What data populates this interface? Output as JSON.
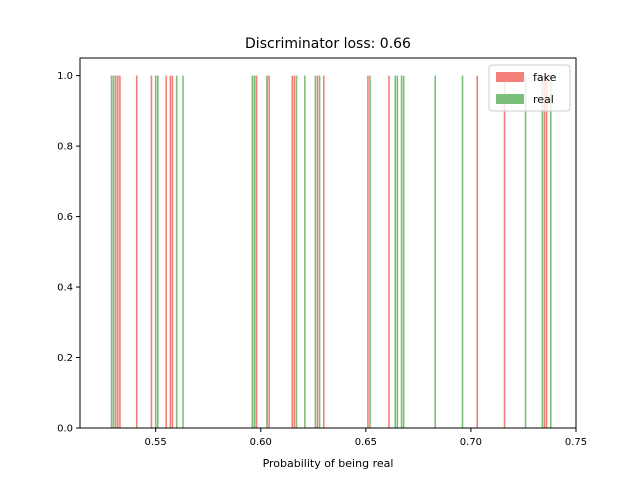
{
  "chart_data": {
    "type": "bar",
    "title": "Discriminator loss: 0.66",
    "xlabel": "Probability of being real",
    "ylabel": "",
    "xlim": [
      0.514,
      0.75
    ],
    "ylim": [
      0,
      1.05
    ],
    "xticks": [
      "0.55",
      "0.60",
      "0.65",
      "0.70",
      "0.75"
    ],
    "yticks": [
      "0.0",
      "0.2",
      "0.4",
      "0.6",
      "0.8",
      "1.0"
    ],
    "legend": {
      "position": "top-right"
    },
    "series": [
      {
        "name": "fake",
        "color": "#f28079",
        "x": [
          0.53,
          0.531,
          0.532,
          0.533,
          0.541,
          0.548,
          0.551,
          0.555,
          0.557,
          0.558,
          0.597,
          0.598,
          0.603,
          0.604,
          0.615,
          0.616,
          0.627,
          0.63,
          0.651,
          0.661,
          0.703,
          0.716,
          0.735,
          0.736
        ],
        "values": [
          1,
          1,
          1,
          1,
          1,
          1,
          1,
          1,
          1,
          1,
          1,
          1,
          1,
          1,
          1,
          1,
          1,
          1,
          1,
          1,
          1,
          1,
          1,
          1
        ]
      },
      {
        "name": "real",
        "color": "#7cbf7a",
        "x": [
          0.529,
          0.53,
          0.55,
          0.551,
          0.56,
          0.563,
          0.596,
          0.597,
          0.603,
          0.617,
          0.621,
          0.626,
          0.628,
          0.652,
          0.664,
          0.665,
          0.667,
          0.668,
          0.683,
          0.696,
          0.726,
          0.734,
          0.738
        ],
        "values": [
          1,
          1,
          1,
          1,
          1,
          1,
          1,
          1,
          1,
          1,
          1,
          1,
          1,
          1,
          1,
          1,
          1,
          1,
          1,
          1,
          1,
          1,
          1
        ]
      }
    ]
  }
}
